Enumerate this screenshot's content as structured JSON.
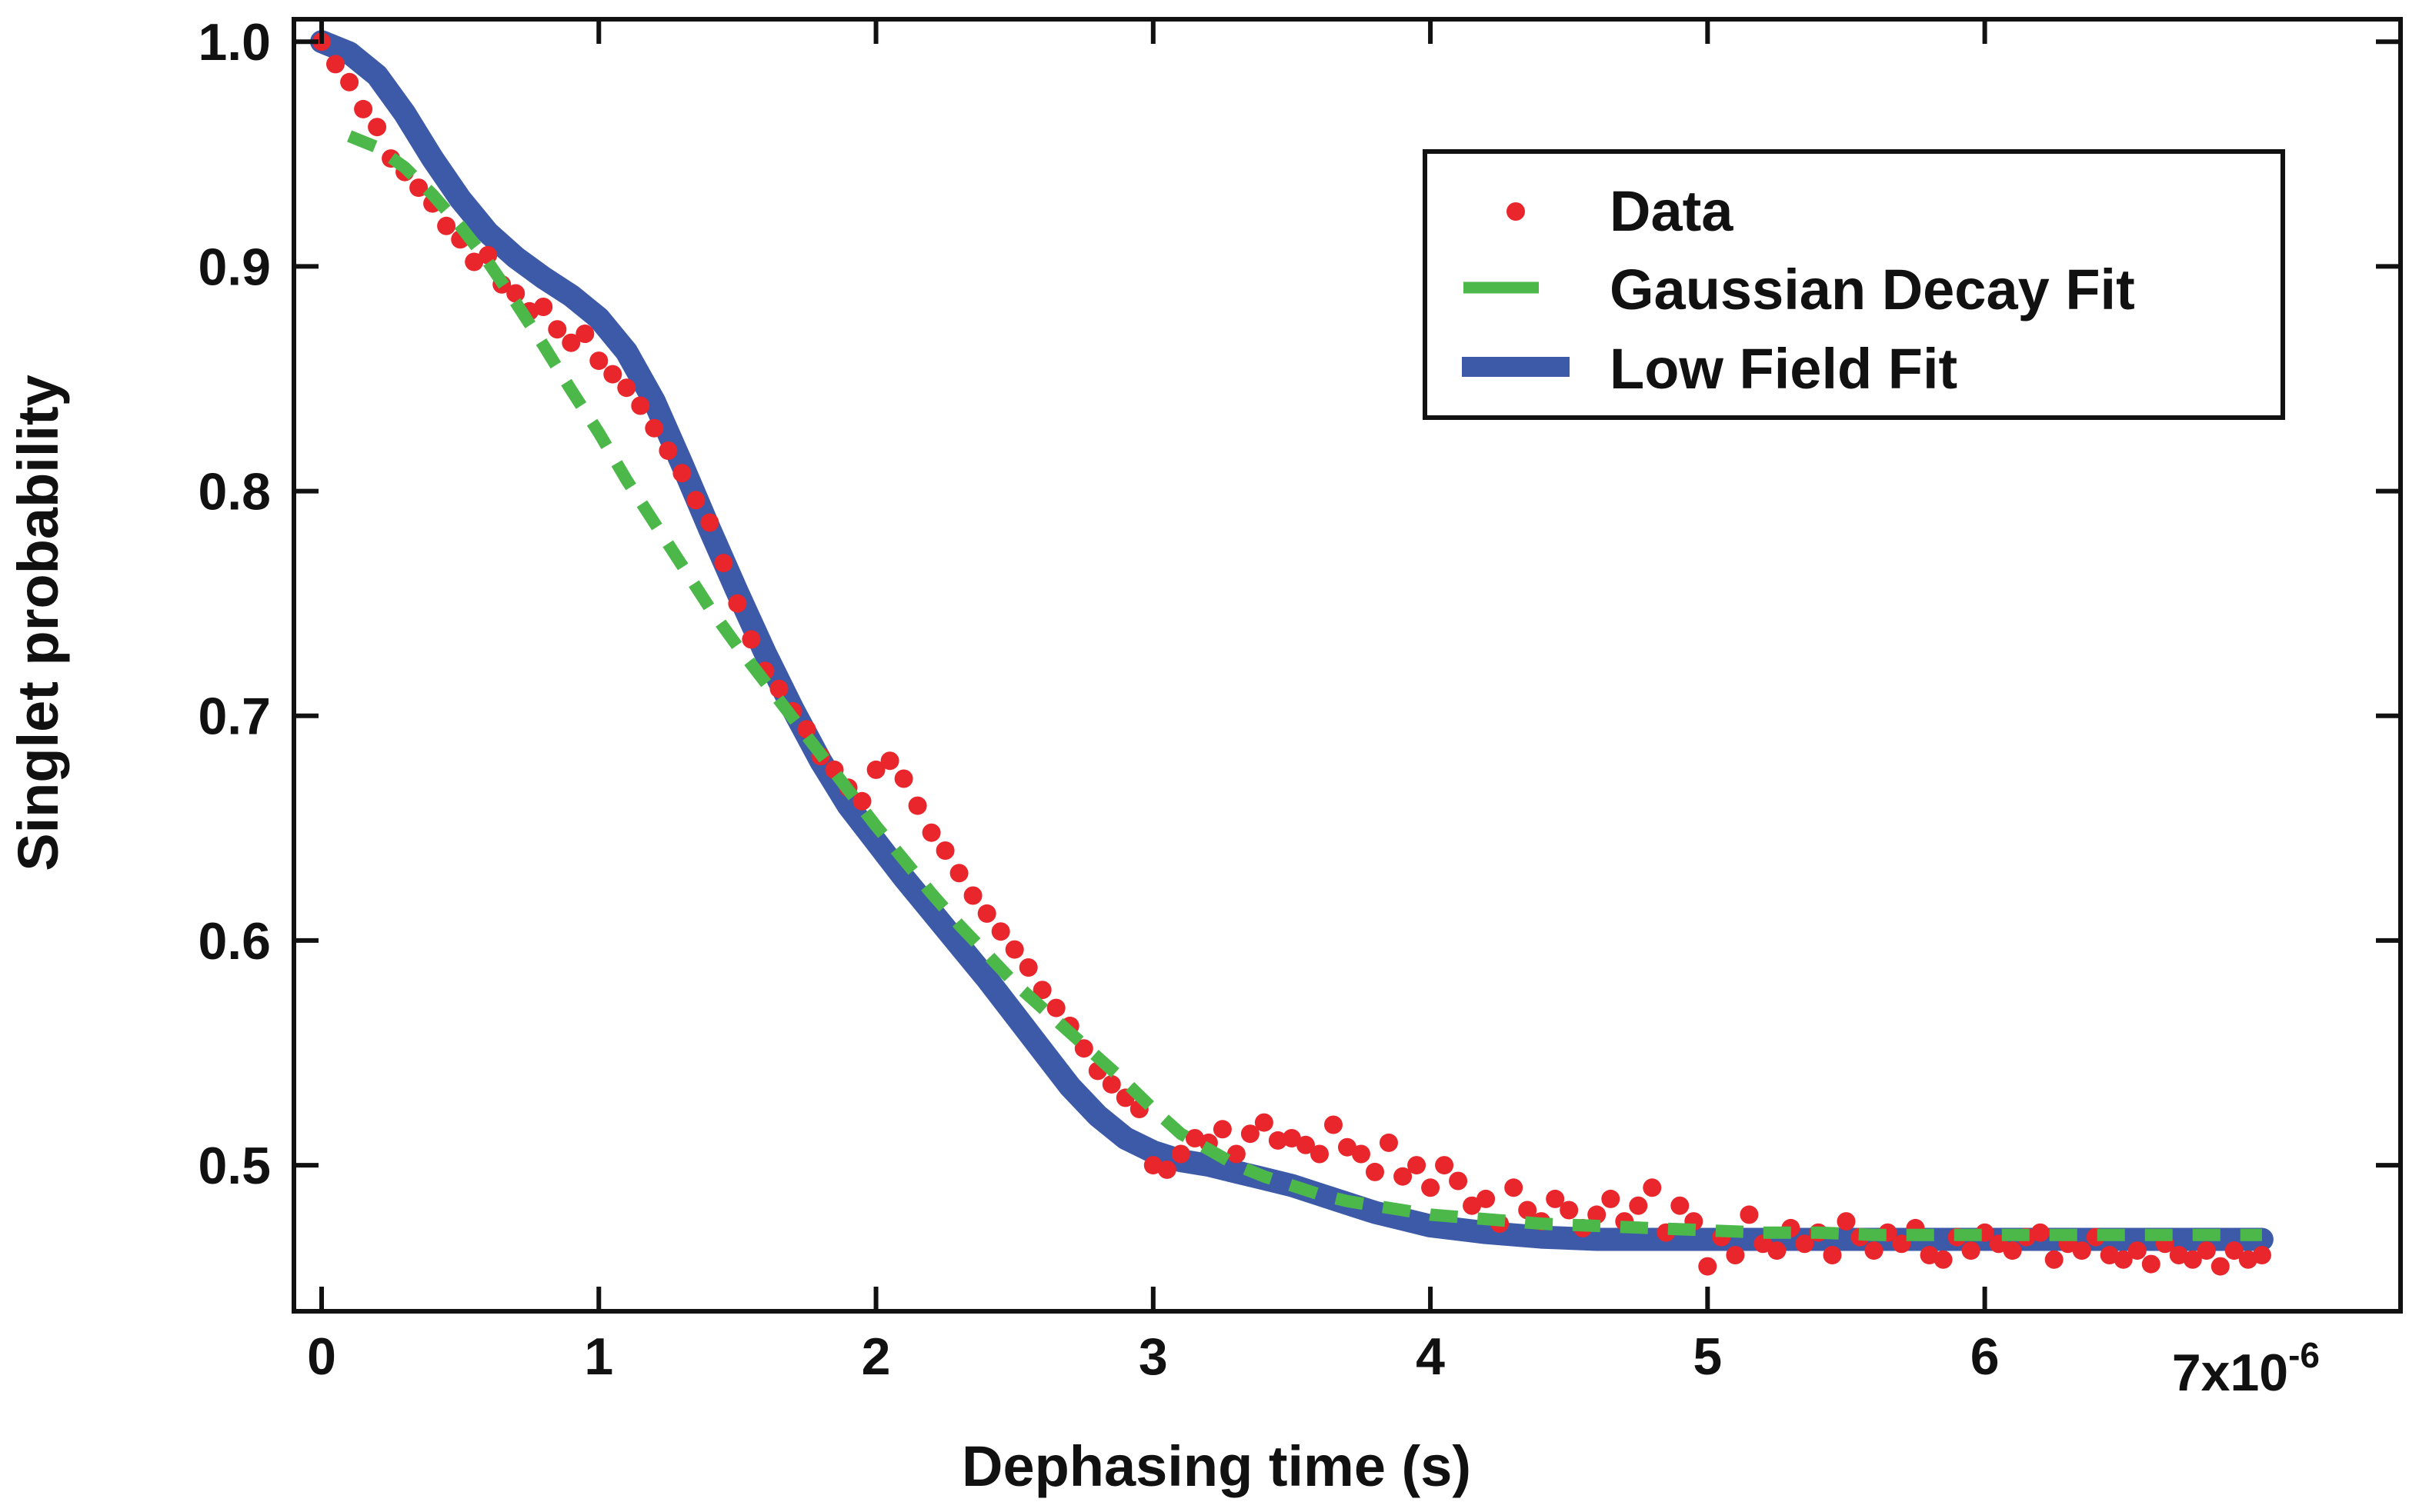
{
  "chart_data": {
    "type": "scatter",
    "xlabel": "Dephasing time (s)",
    "ylabel": "Singlet probability",
    "x_exponent_label": "7x10",
    "x_exponent_sup": "-6",
    "xlim": [
      -0.1,
      7.5
    ],
    "ylim": [
      0.435,
      1.01
    ],
    "x_ticks": [
      0,
      1,
      2,
      3,
      4,
      5,
      6
    ],
    "x_tick_labels": [
      "0",
      "1",
      "2",
      "3",
      "4",
      "5",
      "6"
    ],
    "y_ticks": [
      0.5,
      0.6,
      0.7,
      0.8,
      0.9,
      1.0
    ],
    "y_tick_labels": [
      "0.5",
      "0.6",
      "0.7",
      "0.8",
      "0.9",
      "1.0"
    ],
    "grid": false,
    "legend_position": "top-right",
    "colors": {
      "data": "#e8262b",
      "gaussian": "#4cb84a",
      "lowfield": "#3d5aa8",
      "axis": "#111111"
    },
    "series": [
      {
        "name": "Data",
        "style": "markers",
        "x": [
          0.0,
          0.05,
          0.1,
          0.15,
          0.2,
          0.25,
          0.3,
          0.35,
          0.4,
          0.45,
          0.5,
          0.55,
          0.6,
          0.65,
          0.7,
          0.75,
          0.8,
          0.85,
          0.9,
          0.95,
          1.0,
          1.05,
          1.1,
          1.15,
          1.2,
          1.25,
          1.3,
          1.35,
          1.4,
          1.45,
          1.5,
          1.55,
          1.6,
          1.65,
          1.7,
          1.75,
          1.8,
          1.85,
          1.9,
          1.95,
          2.0,
          2.05,
          2.1,
          2.15,
          2.2,
          2.25,
          2.3,
          2.35,
          2.4,
          2.45,
          2.5,
          2.55,
          2.6,
          2.65,
          2.7,
          2.75,
          2.8,
          2.85,
          2.9,
          2.95,
          3.0,
          3.05,
          3.1,
          3.15,
          3.2,
          3.25,
          3.3,
          3.35,
          3.4,
          3.45,
          3.5,
          3.55,
          3.6,
          3.65,
          3.7,
          3.75,
          3.8,
          3.85,
          3.9,
          3.95,
          4.0,
          4.05,
          4.1,
          4.15,
          4.2,
          4.25,
          4.3,
          4.35,
          4.4,
          4.45,
          4.5,
          4.55,
          4.6,
          4.65,
          4.7,
          4.75,
          4.8,
          4.85,
          4.9,
          4.95,
          5.0,
          5.05,
          5.1,
          5.15,
          5.2,
          5.25,
          5.3,
          5.35,
          5.4,
          5.45,
          5.5,
          5.55,
          5.6,
          5.65,
          5.7,
          5.75,
          5.8,
          5.85,
          5.9,
          5.95,
          6.0,
          6.05,
          6.1,
          6.15,
          6.2,
          6.25,
          6.3,
          6.35,
          6.4,
          6.45,
          6.5,
          6.55,
          6.6,
          6.65,
          6.7,
          6.75,
          6.8,
          6.85,
          6.9,
          6.95,
          7.0
        ],
        "y": [
          1.0,
          0.99,
          0.982,
          0.97,
          0.962,
          0.948,
          0.942,
          0.935,
          0.928,
          0.918,
          0.912,
          0.902,
          0.905,
          0.892,
          0.888,
          0.88,
          0.882,
          0.872,
          0.866,
          0.87,
          0.858,
          0.852,
          0.846,
          0.838,
          0.828,
          0.818,
          0.808,
          0.796,
          0.786,
          0.768,
          0.75,
          0.734,
          0.72,
          0.712,
          0.702,
          0.694,
          0.682,
          0.676,
          0.668,
          0.662,
          0.676,
          0.68,
          0.672,
          0.66,
          0.648,
          0.64,
          0.63,
          0.62,
          0.612,
          0.604,
          0.596,
          0.588,
          0.578,
          0.57,
          0.562,
          0.552,
          0.542,
          0.536,
          0.53,
          0.525,
          0.5,
          0.498,
          0.505,
          0.512,
          0.51,
          0.516,
          0.505,
          0.514,
          0.519,
          0.511,
          0.512,
          0.509,
          0.505,
          0.518,
          0.508,
          0.505,
          0.497,
          0.51,
          0.495,
          0.5,
          0.49,
          0.5,
          0.493,
          0.482,
          0.485,
          0.474,
          0.49,
          0.48,
          0.475,
          0.485,
          0.48,
          0.472,
          0.478,
          0.485,
          0.475,
          0.482,
          0.49,
          0.47,
          0.482,
          0.475,
          0.455,
          0.468,
          0.46,
          0.478,
          0.465,
          0.462,
          0.472,
          0.465,
          0.47,
          0.46,
          0.475,
          0.468,
          0.462,
          0.47,
          0.465,
          0.472,
          0.46,
          0.458,
          0.468,
          0.462,
          0.47,
          0.465,
          0.462,
          0.468,
          0.47,
          0.458,
          0.465,
          0.462,
          0.468,
          0.46,
          0.458,
          0.462,
          0.456,
          0.465,
          0.46,
          0.458,
          0.462,
          0.455,
          0.462,
          0.458,
          0.46
        ]
      },
      {
        "name": "Gaussian Decay Fit",
        "style": "dashed",
        "x": [
          0.1,
          0.2,
          0.3,
          0.4,
          0.5,
          0.6,
          0.7,
          0.8,
          0.9,
          1.0,
          1.1,
          1.2,
          1.3,
          1.4,
          1.5,
          1.6,
          1.7,
          1.8,
          1.9,
          2.0,
          2.1,
          2.2,
          2.3,
          2.4,
          2.5,
          2.6,
          2.7,
          2.8,
          2.9,
          3.0,
          3.1,
          3.2,
          3.3,
          3.4,
          3.5,
          3.6,
          3.7,
          3.8,
          3.9,
          4.0,
          4.2,
          4.4,
          4.6,
          4.8,
          5.0,
          5.2,
          5.4,
          5.6,
          5.8,
          6.0,
          6.2,
          6.4,
          6.6,
          6.8,
          7.0
        ],
        "y": [
          0.958,
          0.953,
          0.944,
          0.932,
          0.918,
          0.902,
          0.884,
          0.865,
          0.845,
          0.826,
          0.805,
          0.786,
          0.767,
          0.748,
          0.731,
          0.715,
          0.699,
          0.683,
          0.667,
          0.651,
          0.636,
          0.621,
          0.607,
          0.594,
          0.581,
          0.57,
          0.559,
          0.548,
          0.537,
          0.525,
          0.514,
          0.507,
          0.5,
          0.495,
          0.491,
          0.487,
          0.484,
          0.482,
          0.48,
          0.478,
          0.476,
          0.474,
          0.473,
          0.472,
          0.471,
          0.47,
          0.47,
          0.469,
          0.469,
          0.469,
          0.469,
          0.469,
          0.469,
          0.469,
          0.469
        ]
      },
      {
        "name": "Low Field Fit",
        "style": "thick-line",
        "x": [
          0.0,
          0.1,
          0.2,
          0.3,
          0.4,
          0.5,
          0.6,
          0.7,
          0.8,
          0.9,
          1.0,
          1.1,
          1.2,
          1.3,
          1.4,
          1.5,
          1.6,
          1.7,
          1.8,
          1.9,
          2.0,
          2.1,
          2.2,
          2.3,
          2.4,
          2.5,
          2.6,
          2.7,
          2.8,
          2.9,
          3.0,
          3.1,
          3.2,
          3.3,
          3.4,
          3.5,
          3.6,
          3.7,
          3.8,
          3.9,
          4.0,
          4.2,
          4.4,
          4.6,
          4.8,
          5.0,
          5.2,
          5.4,
          5.6,
          5.8,
          6.0,
          6.2,
          6.4,
          6.6,
          6.8,
          7.0
        ],
        "y": [
          1.0,
          0.995,
          0.985,
          0.968,
          0.948,
          0.93,
          0.915,
          0.904,
          0.895,
          0.887,
          0.877,
          0.862,
          0.84,
          0.812,
          0.783,
          0.755,
          0.728,
          0.703,
          0.68,
          0.66,
          0.644,
          0.628,
          0.613,
          0.598,
          0.583,
          0.567,
          0.551,
          0.535,
          0.522,
          0.512,
          0.506,
          0.502,
          0.5,
          0.497,
          0.494,
          0.491,
          0.487,
          0.483,
          0.479,
          0.476,
          0.473,
          0.47,
          0.468,
          0.467,
          0.467,
          0.467,
          0.467,
          0.467,
          0.467,
          0.467,
          0.467,
          0.467,
          0.467,
          0.467,
          0.467,
          0.467
        ]
      }
    ]
  }
}
